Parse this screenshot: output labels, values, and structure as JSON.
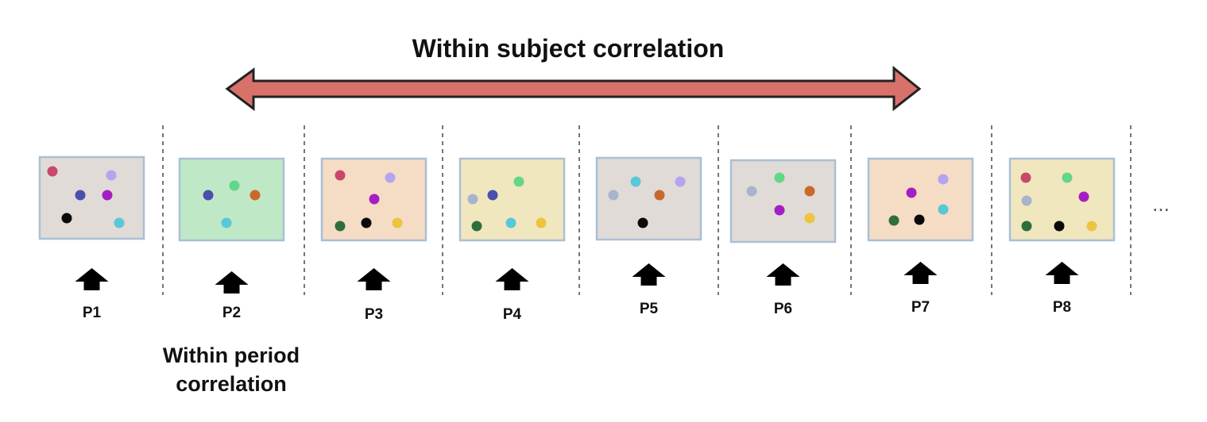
{
  "title": "Within subject correlation",
  "note_line1": "Within period",
  "note_line2": "correlation",
  "ellipsis": "...",
  "colors": {
    "arrow_fill": "#d9716b",
    "box_border": "#a9bfd6",
    "divider": "#555555"
  },
  "periods": [
    {
      "label": "P1",
      "bg": "#e0dbd6",
      "dots": [
        "red",
        "lavender",
        "navy",
        "purple",
        "black",
        "cyan"
      ]
    },
    {
      "label": "P2",
      "bg": "#bfe8c6",
      "dots": [
        "green",
        "navy",
        "orange",
        "cyan"
      ]
    },
    {
      "label": "P3",
      "bg": "#f5dcc5",
      "dots": [
        "red",
        "lavender",
        "purple",
        "darkgreen",
        "black",
        "yellow"
      ]
    },
    {
      "label": "P4",
      "bg": "#f0e7bf",
      "dots": [
        "green",
        "slate",
        "navy",
        "darkgreen",
        "cyan",
        "yellow"
      ]
    },
    {
      "label": "P5",
      "bg": "#e0dbd6",
      "dots": [
        "cyan",
        "lavender",
        "slate",
        "orange",
        "black"
      ]
    },
    {
      "label": "P6",
      "bg": "#e0dbd6",
      "dots": [
        "green",
        "slate",
        "orange",
        "purple",
        "yellow"
      ]
    },
    {
      "label": "P7",
      "bg": "#f5dcc5",
      "dots": [
        "lavender",
        "purple",
        "cyan",
        "darkgreen",
        "black"
      ]
    },
    {
      "label": "P8",
      "bg": "#f0e7bf",
      "dots": [
        "red",
        "green",
        "slate",
        "purple",
        "darkgreen",
        "black",
        "yellow"
      ]
    }
  ],
  "dot_colors": {
    "red": "#c9476a",
    "lavender": "#b4a4f0",
    "navy": "#4a4fae",
    "purple": "#a51ec4",
    "black": "#0a0a0a",
    "cyan": "#59c7d8",
    "green": "#62d689",
    "orange": "#c8692b",
    "darkgreen": "#2e6e3c",
    "yellow": "#ecc43f",
    "slate": "#a6b4cc"
  }
}
